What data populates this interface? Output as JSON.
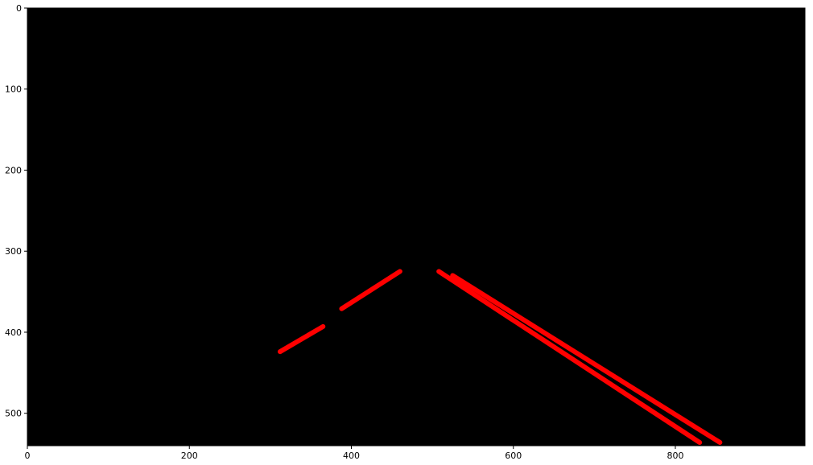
{
  "chart_data": {
    "type": "image",
    "background_color": "#000000",
    "segment_color": "#ff0000",
    "xlim": [
      0,
      960
    ],
    "ylim": [
      540,
      0
    ],
    "x_ticks": [
      0,
      200,
      400,
      600,
      800
    ],
    "y_ticks": [
      0,
      100,
      200,
      300,
      400,
      500
    ],
    "x_tick_labels": [
      "0",
      "200",
      "400",
      "600",
      "800"
    ],
    "y_tick_labels": [
      "0",
      "100",
      "200",
      "300",
      "400",
      "500"
    ],
    "segments": [
      {
        "x1": 312,
        "y1": 424,
        "x2": 365,
        "y2": 393
      },
      {
        "x1": 388,
        "y1": 371,
        "x2": 460,
        "y2": 325
      },
      {
        "x1": 508,
        "y1": 325,
        "x2": 830,
        "y2": 536
      },
      {
        "x1": 525,
        "y1": 330,
        "x2": 855,
        "y2": 536
      }
    ]
  }
}
